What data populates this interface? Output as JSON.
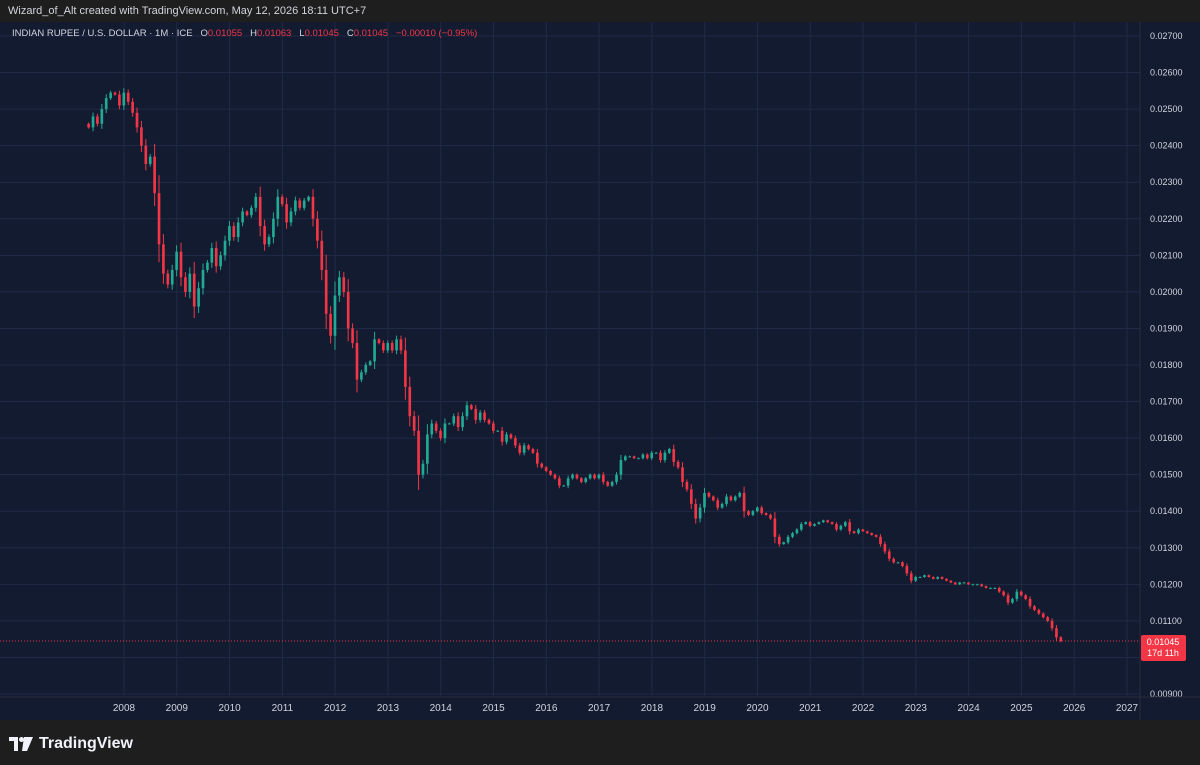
{
  "header": {
    "caption": "Wizard_of_Alt created with TradingView.com, May 12, 2026 18:11 UTC+7"
  },
  "legend": {
    "symbol": "INDIAN RUPEE / U.S. DOLLAR · 1M · ICE",
    "o_label": "O",
    "o_value": "0.01055",
    "h_label": "H",
    "h_value": "0.01063",
    "l_label": "L",
    "l_value": "0.01045",
    "c_label": "C",
    "c_value": "0.01045",
    "change": "−0.00010 (−0.95%)"
  },
  "price_tag": {
    "price": "0.01045",
    "countdown": "17d 11h"
  },
  "footer": {
    "brand": "TradingView"
  },
  "colors": {
    "background": "#131b31",
    "up": "#22ab94",
    "down": "#f23645",
    "grid": "#1f2a44",
    "text": "#d1d4dc"
  },
  "chart_data": {
    "type": "candlestick",
    "title": "INDIAN RUPEE / U.S. DOLLAR · 1M · ICE",
    "interval": "1M",
    "x_ticks": [
      "2008",
      "2009",
      "2010",
      "2011",
      "2012",
      "2013",
      "2014",
      "2015",
      "2016",
      "2017",
      "2018",
      "2019",
      "2020",
      "2021",
      "2022",
      "2023",
      "2024",
      "2025",
      "2026",
      "2027"
    ],
    "y_ticks": [
      "0.02700",
      "0.02600",
      "0.02500",
      "0.02400",
      "0.02300",
      "0.02200",
      "0.02100",
      "0.02000",
      "0.01900",
      "0.01800",
      "0.01700",
      "0.01600",
      "0.01500",
      "0.01400",
      "0.01300",
      "0.01200",
      "0.01100",
      "0.01000",
      "0.00900"
    ],
    "ylim": [
      0.009,
      0.0272
    ],
    "x_start": 2007.33,
    "last_close": 0.01045,
    "closes": [
      0.0245,
      0.0248,
      0.0246,
      0.025,
      0.0253,
      0.02545,
      0.0254,
      0.0251,
      0.02545,
      0.0252,
      0.0249,
      0.0245,
      0.024,
      0.0235,
      0.0237,
      0.0227,
      0.0213,
      0.0205,
      0.0202,
      0.0206,
      0.0211,
      0.0204,
      0.02,
      0.0205,
      0.0196,
      0.0201,
      0.0206,
      0.0208,
      0.0212,
      0.0207,
      0.021,
      0.0214,
      0.0218,
      0.0215,
      0.0219,
      0.0222,
      0.0221,
      0.0223,
      0.0226,
      0.0218,
      0.0213,
      0.0215,
      0.022,
      0.0226,
      0.0224,
      0.0219,
      0.0222,
      0.0225,
      0.0223,
      0.0225,
      0.0226,
      0.022,
      0.0214,
      0.0206,
      0.0194,
      0.0188,
      0.0199,
      0.0204,
      0.02,
      0.019,
      0.0186,
      0.0176,
      0.0178,
      0.018,
      0.0181,
      0.0187,
      0.0186,
      0.0184,
      0.0186,
      0.0184,
      0.0187,
      0.0184,
      0.0174,
      0.0166,
      0.0162,
      0.015,
      0.0153,
      0.0161,
      0.0164,
      0.0162,
      0.016,
      0.0164,
      0.0164,
      0.0166,
      0.0163,
      0.0166,
      0.0169,
      0.0168,
      0.0165,
      0.0167,
      0.0165,
      0.0164,
      0.0162,
      0.0162,
      0.0159,
      0.0161,
      0.016,
      0.0158,
      0.0156,
      0.0158,
      0.0157,
      0.0156,
      0.0153,
      0.0152,
      0.0151,
      0.015,
      0.0149,
      0.0147,
      0.0147,
      0.0149,
      0.015,
      0.0149,
      0.0148,
      0.0149,
      0.015,
      0.0149,
      0.015,
      0.0148,
      0.0147,
      0.0148,
      0.015,
      0.0154,
      0.0155,
      0.0155,
      0.01545,
      0.01545,
      0.01555,
      0.01545,
      0.0156,
      0.0156,
      0.0154,
      0.0156,
      0.0157,
      0.01535,
      0.0152,
      0.0148,
      0.0146,
      0.0142,
      0.0138,
      0.0141,
      0.0145,
      0.0144,
      0.0143,
      0.0141,
      0.0142,
      0.0144,
      0.0143,
      0.0144,
      0.0145,
      0.014,
      0.0139,
      0.014,
      0.0141,
      0.01395,
      0.0139,
      0.0138,
      0.0133,
      0.0131,
      0.01315,
      0.0133,
      0.0134,
      0.0135,
      0.01365,
      0.0137,
      0.0136,
      0.01365,
      0.0137,
      0.01375,
      0.0137,
      0.01365,
      0.0135,
      0.0136,
      0.0137,
      0.01345,
      0.0134,
      0.0135,
      0.01345,
      0.0134,
      0.01335,
      0.0133,
      0.0131,
      0.0129,
      0.0127,
      0.0126,
      0.0126,
      0.0125,
      0.0123,
      0.0121,
      0.0122,
      0.0122,
      0.01225,
      0.0122,
      0.01215,
      0.0122,
      0.01215,
      0.0121,
      0.01205,
      0.012,
      0.01205,
      0.01205,
      0.012,
      0.012,
      0.012,
      0.01195,
      0.0119,
      0.0119,
      0.0119,
      0.0118,
      0.0117,
      0.0115,
      0.0116,
      0.0118,
      0.0117,
      0.0116,
      0.0114,
      0.0113,
      0.0112,
      0.0111,
      0.011,
      0.0108,
      0.01055,
      0.01045
    ]
  }
}
